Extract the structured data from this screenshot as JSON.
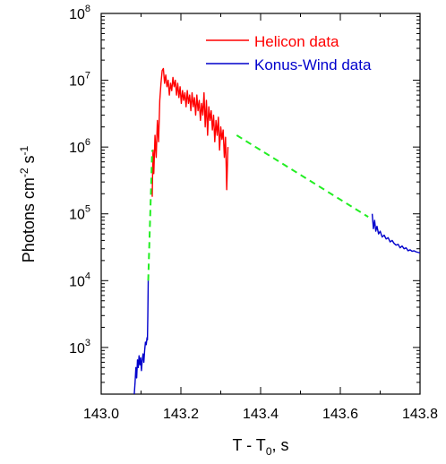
{
  "chart_data": {
    "type": "line",
    "xlabel": "T - T",
    "xlabel_sub": "0",
    "xlabel_suffix": ", s",
    "ylabel": "Photons cm",
    "ylabel_sup1": "-2",
    "ylabel_mid": " s",
    "ylabel_sup2": "-1",
    "xlim": [
      143.0,
      143.8
    ],
    "ylim": [
      200,
      100000000
    ],
    "yscale": "log",
    "x_ticks": [
      143.0,
      143.2,
      143.4,
      143.6,
      143.8
    ],
    "x_tick_labels": [
      "143.0",
      "143.2",
      "143.4",
      "143.6",
      "143.8"
    ],
    "y_ticks": [
      1000,
      10000,
      100000,
      1000000,
      10000000,
      100000000
    ],
    "y_tick_bases": [
      "10",
      "10",
      "10",
      "10",
      "10",
      "10"
    ],
    "y_tick_exponents": [
      "3",
      "4",
      "5",
      "6",
      "7",
      "8"
    ],
    "legend_position": "top-right",
    "series": [
      {
        "name": "Helicon data",
        "color": "#ff0000",
        "points": [
          [
            143.128,
            180000
          ],
          [
            143.13,
            900000
          ],
          [
            143.132,
            400000
          ],
          [
            143.135,
            1500000
          ],
          [
            143.138,
            700000
          ],
          [
            143.141,
            2500000
          ],
          [
            143.144,
            1200000
          ],
          [
            143.147,
            5000000
          ],
          [
            143.15,
            9000000
          ],
          [
            143.153,
            14000000
          ],
          [
            143.156,
            15000000
          ],
          [
            143.159,
            9000000
          ],
          [
            143.162,
            12000000
          ],
          [
            143.165,
            8000000
          ],
          [
            143.168,
            10000000
          ],
          [
            143.171,
            6000000
          ],
          [
            143.174,
            9000000
          ],
          [
            143.177,
            7000000
          ],
          [
            143.18,
            11000000
          ],
          [
            143.183,
            8000000
          ],
          [
            143.186,
            10000000
          ],
          [
            143.189,
            6000000
          ],
          [
            143.192,
            9000000
          ],
          [
            143.195,
            5500000
          ],
          [
            143.198,
            8000000
          ],
          [
            143.201,
            4500000
          ],
          [
            143.204,
            7000000
          ],
          [
            143.207,
            5000000
          ],
          [
            143.21,
            6500000
          ],
          [
            143.213,
            4000000
          ],
          [
            143.216,
            7000000
          ],
          [
            143.219,
            4500000
          ],
          [
            143.222,
            6000000
          ],
          [
            143.225,
            3500000
          ],
          [
            143.228,
            6500000
          ],
          [
            143.231,
            4000000
          ],
          [
            143.234,
            5500000
          ],
          [
            143.237,
            3000000
          ],
          [
            143.24,
            6000000
          ],
          [
            143.243,
            3500000
          ],
          [
            143.246,
            5000000
          ],
          [
            143.249,
            2500000
          ],
          [
            143.252,
            4500000
          ],
          [
            143.255,
            3000000
          ],
          [
            143.258,
            6500000
          ],
          [
            143.261,
            2000000
          ],
          [
            143.264,
            5000000
          ],
          [
            143.267,
            1500000
          ],
          [
            143.27,
            4000000
          ],
          [
            143.273,
            2500000
          ],
          [
            143.276,
            3500000
          ],
          [
            143.279,
            1800000
          ],
          [
            143.282,
            3000000
          ],
          [
            143.285,
            1200000
          ],
          [
            143.288,
            2500000
          ],
          [
            143.291,
            1500000
          ],
          [
            143.294,
            2800000
          ],
          [
            143.297,
            900000
          ],
          [
            143.3,
            2000000
          ],
          [
            143.303,
            1300000
          ],
          [
            143.306,
            1800000
          ],
          [
            143.309,
            700000
          ],
          [
            143.312,
            1400000
          ],
          [
            143.315,
            230000
          ],
          [
            143.318,
            1000000
          ]
        ]
      },
      {
        "name": "Konus-Wind data",
        "color": "#0000cc",
        "segments": [
          [
            [
              143.083,
              200
            ],
            [
              143.085,
              300
            ],
            [
              143.087,
              500
            ],
            [
              143.089,
              350
            ],
            [
              143.091,
              650
            ],
            [
              143.093,
              500
            ],
            [
              143.095,
              750
            ],
            [
              143.097,
              550
            ],
            [
              143.099,
              700
            ],
            [
              143.101,
              450
            ],
            [
              143.103,
              650
            ],
            [
              143.105,
              800
            ],
            [
              143.107,
              600
            ],
            [
              143.109,
              900
            ],
            [
              143.111,
              1200
            ],
            [
              143.113,
              1100
            ],
            [
              143.115,
              1400
            ],
            [
              143.116,
              1300
            ],
            [
              143.117,
              3000
            ],
            [
              143.118,
              10000
            ]
          ],
          [
            [
              143.68,
              100000
            ],
            [
              143.683,
              60000
            ],
            [
              143.686,
              80000
            ],
            [
              143.689,
              55000
            ],
            [
              143.692,
              65000
            ],
            [
              143.696,
              50000
            ],
            [
              143.7,
              55000
            ],
            [
              143.705,
              45000
            ],
            [
              143.71,
              48000
            ],
            [
              143.715,
              42000
            ],
            [
              143.72,
              44000
            ],
            [
              143.725,
              38000
            ],
            [
              143.73,
              40000
            ],
            [
              143.735,
              36000
            ],
            [
              143.74,
              34000
            ],
            [
              143.745,
              35000
            ],
            [
              143.75,
              31000
            ],
            [
              143.755,
              33000
            ],
            [
              143.76,
              30000
            ],
            [
              143.765,
              31000
            ],
            [
              143.77,
              28000
            ],
            [
              143.775,
              29000
            ],
            [
              143.78,
              27500
            ],
            [
              143.785,
              28000
            ],
            [
              143.79,
              27000
            ],
            [
              143.795,
              26500
            ],
            [
              143.8,
              26000
            ]
          ]
        ]
      },
      {
        "color": "#22ee22",
        "style": "dashed",
        "segments": [
          [
            [
              143.118,
              10000
            ],
            [
              143.128,
              900000
            ]
          ],
          [
            [
              143.34,
              1500000
            ],
            [
              143.67,
              90000
            ]
          ]
        ]
      }
    ]
  }
}
